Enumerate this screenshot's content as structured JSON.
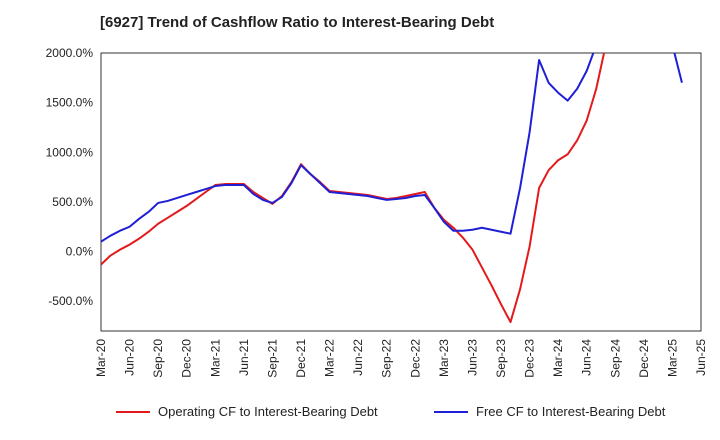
{
  "chart_data": {
    "type": "line",
    "title": "[6927]  Trend of Cashflow Ratio to Interest-Bearing Debt",
    "xlabel": "",
    "ylabel": "",
    "ylim": [
      -800,
      2000
    ],
    "yticks": [
      -500,
      0,
      500,
      1000,
      1500,
      2000
    ],
    "ytick_labels": [
      "-500.0%",
      "0.0%",
      "500.0%",
      "1000.0%",
      "1500.0%",
      "2000.0%"
    ],
    "grid": true,
    "legend_position": "bottom",
    "x_tick_labels": [
      "Mar-20",
      "Jun-20",
      "Sep-20",
      "Dec-20",
      "Mar-21",
      "Jun-21",
      "Sep-21",
      "Dec-21",
      "Mar-22",
      "Jun-22",
      "Sep-22",
      "Dec-22",
      "Mar-23",
      "Jun-23",
      "Sep-23",
      "Dec-23",
      "Mar-24",
      "Jun-24",
      "Sep-24",
      "Dec-24",
      "Mar-25",
      "Jun-25"
    ],
    "x": [
      "Mar-20",
      "Apr-20",
      "May-20",
      "Jun-20",
      "Jul-20",
      "Aug-20",
      "Sep-20",
      "Oct-20",
      "Nov-20",
      "Dec-20",
      "Jan-21",
      "Feb-21",
      "Mar-21",
      "Apr-21",
      "May-21",
      "Jun-21",
      "Jul-21",
      "Aug-21",
      "Sep-21",
      "Oct-21",
      "Nov-21",
      "Dec-21",
      "Jan-22",
      "Feb-22",
      "Mar-22",
      "Apr-22",
      "May-22",
      "Jun-22",
      "Jul-22",
      "Aug-22",
      "Sep-22",
      "Oct-22",
      "Nov-22",
      "Dec-22",
      "Jan-23",
      "Feb-23",
      "Mar-23",
      "Apr-23",
      "May-23",
      "Jun-23",
      "Jul-23",
      "Aug-23",
      "Sep-23",
      "Oct-23",
      "Nov-23",
      "Dec-23",
      "Jan-24",
      "Feb-24",
      "Mar-24",
      "Apr-24",
      "May-24",
      "Jun-24",
      "Jul-24",
      "Aug-24",
      "Sep-24",
      "Oct-24",
      "Nov-24",
      "Dec-24",
      "Jan-25",
      "Feb-25",
      "Mar-25",
      "Apr-25",
      "May-25",
      "Jun-25"
    ],
    "series": [
      {
        "name": "Operating CF to Interest-Bearing Debt",
        "color": "#e31a1c",
        "values": [
          -130,
          -40,
          20,
          70,
          130,
          200,
          280,
          340,
          400,
          460,
          530,
          600,
          670,
          680,
          680,
          680,
          600,
          540,
          480,
          560,
          700,
          880,
          780,
          700,
          610,
          600,
          590,
          580,
          570,
          550,
          530,
          540,
          560,
          580,
          600,
          440,
          320,
          240,
          140,
          20,
          -160,
          -340,
          -530,
          -710,
          -380,
          50,
          640,
          820,
          920,
          980,
          1120,
          1320,
          1640,
          2080,
          null,
          null,
          null,
          null,
          null,
          null,
          null,
          null,
          null,
          null
        ]
      },
      {
        "name": "Free CF to Interest-Bearing Debt",
        "color": "#1f1fd6",
        "values": [
          100,
          160,
          210,
          250,
          330,
          400,
          490,
          510,
          540,
          570,
          600,
          630,
          660,
          670,
          670,
          670,
          580,
          520,
          490,
          550,
          690,
          870,
          780,
          690,
          600,
          590,
          580,
          570,
          560,
          540,
          520,
          530,
          540,
          560,
          570,
          440,
          300,
          210,
          210,
          220,
          240,
          220,
          200,
          180,
          640,
          1200,
          1930,
          1700,
          1600,
          1520,
          1640,
          1820,
          2080,
          null,
          null,
          null,
          null,
          null,
          null,
          null,
          2080,
          1700,
          null,
          null
        ]
      }
    ]
  }
}
